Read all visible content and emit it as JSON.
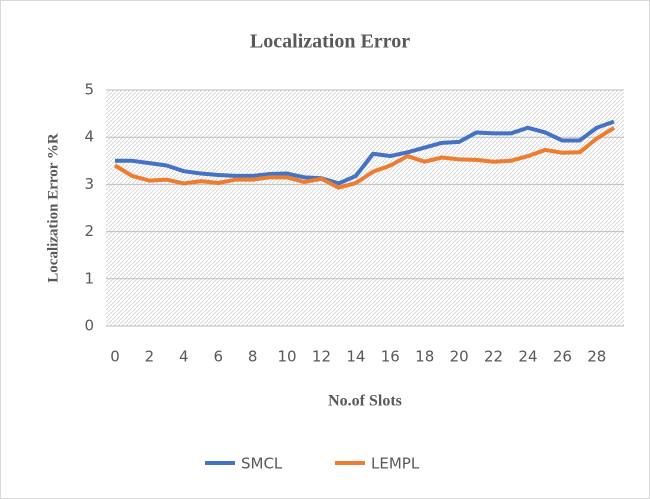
{
  "chart_data": {
    "type": "line",
    "title": "Localization Error",
    "xlabel": "No.of Slots",
    "ylabel": "Localization Error %R",
    "x": [
      0,
      1,
      2,
      3,
      4,
      5,
      6,
      7,
      8,
      9,
      10,
      11,
      12,
      13,
      14,
      15,
      16,
      17,
      18,
      19,
      20,
      21,
      22,
      23,
      24,
      25,
      26,
      27,
      28,
      29
    ],
    "xlim": [
      0,
      29
    ],
    "xticks": [
      0,
      2,
      4,
      6,
      8,
      10,
      12,
      14,
      16,
      18,
      20,
      22,
      24,
      26,
      28
    ],
    "ylim": [
      0,
      5
    ],
    "yticks": [
      0,
      1,
      2,
      3,
      4,
      5
    ],
    "grid": true,
    "legend": "bottom",
    "series": [
      {
        "name": "SMCL",
        "color": "#4472c4",
        "values": [
          3.5,
          3.5,
          3.45,
          3.4,
          3.28,
          3.23,
          3.2,
          3.18,
          3.18,
          3.22,
          3.23,
          3.15,
          3.13,
          3.02,
          3.18,
          3.65,
          3.6,
          3.68,
          3.78,
          3.88,
          3.9,
          4.1,
          4.08,
          4.08,
          4.2,
          4.1,
          3.93,
          3.93,
          4.2,
          4.33
        ]
      },
      {
        "name": "LEMPL",
        "color": "#ed7d31",
        "values": [
          3.4,
          3.18,
          3.08,
          3.1,
          3.02,
          3.07,
          3.03,
          3.1,
          3.1,
          3.15,
          3.15,
          3.05,
          3.12,
          2.93,
          3.03,
          3.27,
          3.4,
          3.6,
          3.48,
          3.57,
          3.53,
          3.52,
          3.48,
          3.5,
          3.6,
          3.73,
          3.67,
          3.68,
          3.97,
          4.2
        ]
      }
    ]
  }
}
